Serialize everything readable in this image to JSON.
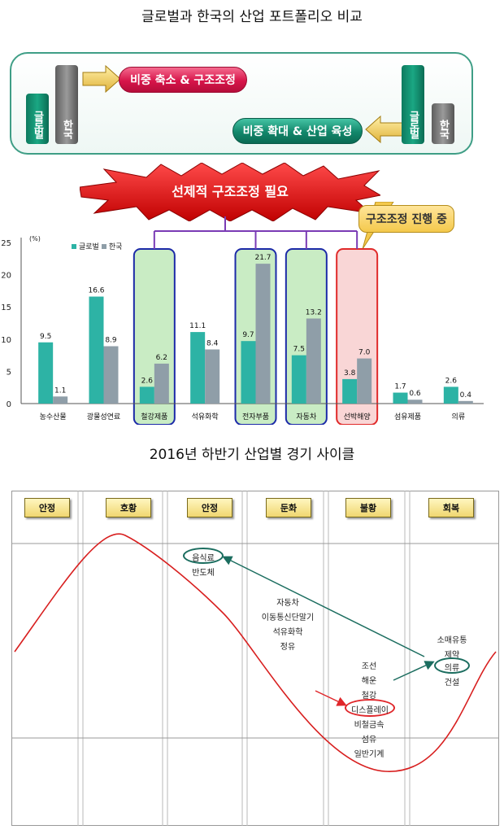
{
  "section1_title": "글로벌과 한국의 산업 포트폴리오 비교",
  "portfolio": {
    "left_global": "글로벌",
    "left_korea": "한국",
    "right_global": "글로벌",
    "right_korea": "한국",
    "reduce_label": "비중 축소 & 구조조정",
    "expand_label": "비중 확대 & 산업 육성"
  },
  "banner_label": "선제적 구조조정 필요",
  "callout_label": "구조조정 진행 중",
  "chart_data": {
    "type": "bar",
    "unit_label": "(%)",
    "categories": [
      "농수산물",
      "광물성연료",
      "철강제품",
      "석유화학",
      "전자부품",
      "자동차",
      "선박해양",
      "섬유제품",
      "의류"
    ],
    "series": [
      {
        "name": "글로벌",
        "values": [
          9.5,
          16.6,
          2.6,
          11.1,
          9.7,
          7.5,
          3.8,
          1.7,
          2.6
        ]
      },
      {
        "name": "한국",
        "values": [
          1.1,
          8.9,
          6.2,
          8.4,
          21.7,
          13.2,
          7.0,
          0.6,
          0.4
        ]
      }
    ],
    "value_labels_global": [
      "9.5",
      "16.6",
      "2.6",
      "11.1",
      "9.7",
      "7.5",
      "3.8",
      "1.7",
      "2.6"
    ],
    "value_labels_korea": [
      "1.1",
      "8.9",
      "6.2",
      "8.4",
      "21.7",
      "13.2",
      "7.0",
      "0.6",
      "0.4"
    ],
    "yticks": [
      "0",
      "5",
      "10",
      "15",
      "20",
      "25"
    ],
    "ylim": [
      0,
      25
    ],
    "colors": {
      "global": "#2db3a5",
      "korea": "#8f9ea8"
    },
    "highlight_green": [
      "철강제품",
      "전자부품",
      "자동차"
    ],
    "highlight_red": [
      "선박해양"
    ],
    "legend_position": "top-left"
  },
  "section2_title": "2016년 하반기 산업별 경기 사이클",
  "cycle": {
    "stages": [
      "안정",
      "호황",
      "안정",
      "둔화",
      "불황",
      "회복"
    ],
    "stage_food": "음식료",
    "stage_semi": "반도체",
    "mid_items": [
      "자동차",
      "이동통신단말기",
      "석유화학",
      "정유"
    ],
    "low_items": [
      "조선",
      "해운",
      "철강",
      "디스플레이",
      "비철금속",
      "섬유",
      "일반기계"
    ],
    "recover_items": [
      "소매유통",
      "제약",
      "의류",
      "건설"
    ],
    "colors": {
      "curve": "#d81f1f",
      "arrow_green": "#1b6d5f",
      "arrow_red": "#e0262a",
      "oval_green": "#1b6d5f",
      "oval_red": "#e0262a"
    }
  }
}
